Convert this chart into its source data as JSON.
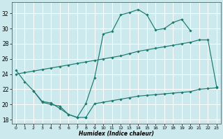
{
  "bg_color": "#cce9ed",
  "grid_color": "#ffffff",
  "line_color": "#1a7a6e",
  "xlabel": "Humidex (Indice chaleur)",
  "xlim": [
    -0.5,
    23.5
  ],
  "ylim": [
    17.5,
    33.5
  ],
  "xticks": [
    0,
    1,
    2,
    3,
    4,
    5,
    6,
    7,
    8,
    9,
    10,
    11,
    12,
    13,
    14,
    15,
    16,
    17,
    18,
    19,
    20,
    21,
    22,
    23
  ],
  "yticks": [
    18,
    20,
    22,
    24,
    26,
    28,
    30,
    32
  ],
  "line1_x": [
    0,
    1,
    2,
    3,
    4,
    5,
    6,
    7,
    8,
    9,
    10,
    11,
    12,
    13,
    14,
    15,
    16,
    17,
    18,
    19,
    20
  ],
  "line1_y": [
    24.5,
    23.0,
    21.8,
    20.4,
    20.2,
    19.5,
    18.7,
    18.3,
    20.1,
    23.5,
    29.3,
    29.6,
    31.8,
    32.1,
    32.5,
    31.8,
    29.8,
    30.0,
    30.8,
    31.2,
    29.7
  ],
  "line2_x": [
    0,
    1,
    2,
    3,
    4,
    5,
    6,
    7,
    8,
    9,
    10,
    11,
    12,
    13,
    14,
    15,
    16,
    17,
    18,
    19,
    20,
    21,
    22,
    23
  ],
  "line2_y": [
    24.0,
    24.2,
    24.4,
    24.6,
    24.8,
    25.0,
    25.2,
    25.4,
    25.6,
    25.8,
    26.0,
    26.2,
    26.4,
    26.7,
    27.0,
    27.2,
    27.4,
    27.6,
    27.8,
    28.0,
    28.2,
    28.5,
    28.5,
    22.3
  ],
  "line3_seg1_x": [
    2,
    3,
    4,
    5,
    6,
    7,
    8
  ],
  "line3_seg1_y": [
    21.8,
    20.3,
    20.0,
    19.8,
    18.7,
    18.3,
    18.3
  ],
  "line3_seg2_x": [
    8,
    9,
    10,
    11,
    12,
    13,
    14,
    15,
    16,
    17,
    18,
    19,
    20,
    21,
    22,
    23
  ],
  "line3_seg2_y": [
    18.3,
    20.1,
    20.3,
    20.5,
    20.7,
    20.9,
    21.1,
    21.2,
    21.3,
    21.4,
    21.5,
    21.6,
    21.7,
    22.0,
    22.1,
    22.2
  ]
}
